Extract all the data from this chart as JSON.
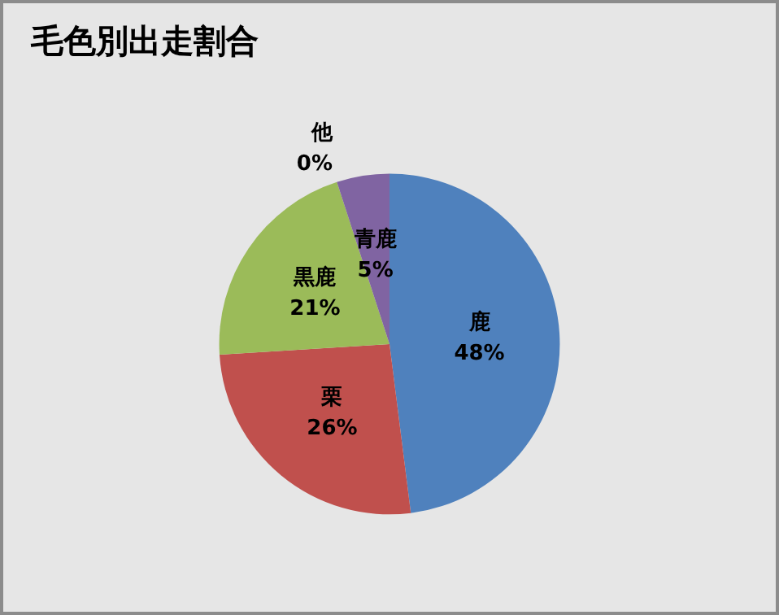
{
  "chart_data": {
    "type": "pie",
    "title": "毛色別出走割合",
    "categories": [
      "鹿",
      "栗",
      "黒鹿",
      "青鹿",
      "他"
    ],
    "values": [
      48,
      26,
      21,
      5,
      0
    ],
    "value_labels": [
      "48%",
      "26%",
      "21%",
      "5%",
      "0%"
    ],
    "colors": [
      "#4f81bd",
      "#c0504d",
      "#9bbb59",
      "#8064a2",
      "#4bacc6"
    ],
    "legend": false
  }
}
